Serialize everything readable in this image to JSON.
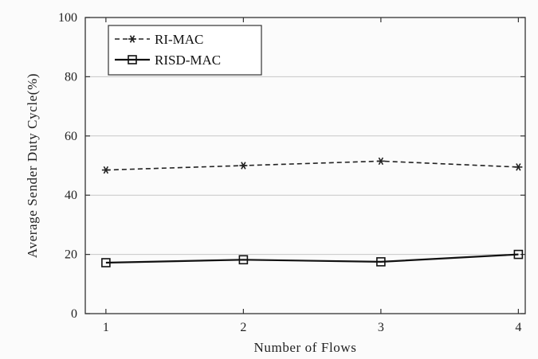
{
  "chart_data": {
    "type": "line",
    "xlabel": "Number of Flows",
    "ylabel": "Average Sender Duty Cycle(%)",
    "x": [
      1,
      2,
      3,
      4
    ],
    "xlim": [
      0.85,
      4.05
    ],
    "ylim": [
      0,
      100
    ],
    "x_ticks": [
      1,
      2,
      3,
      4
    ],
    "y_ticks": [
      0,
      20,
      40,
      60,
      80,
      100
    ],
    "grid": "horizontal",
    "legend_position": "top-left",
    "series": [
      {
        "name": "RI-MAC",
        "values": [
          48.5,
          50.0,
          51.5,
          49.5
        ],
        "line_style": "dashed",
        "marker": "star",
        "color": "#222222"
      },
      {
        "name": "RISD-MAC",
        "values": [
          17.2,
          18.2,
          17.5,
          20.0
        ],
        "line_style": "solid",
        "marker": "square",
        "color": "#111111"
      }
    ]
  }
}
